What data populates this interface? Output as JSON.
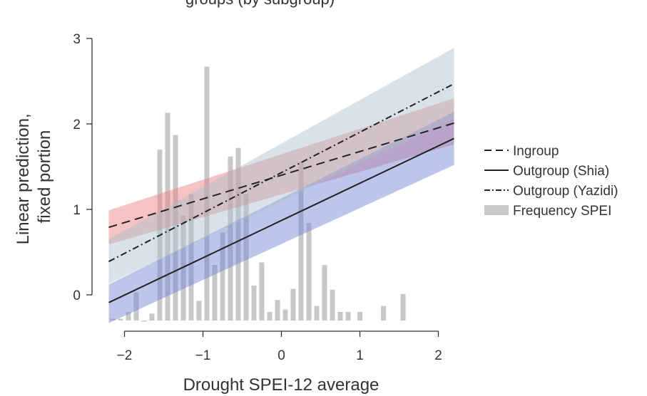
{
  "chart_data": {
    "type": "line",
    "title": "groups (by subgroup)",
    "xlabel": "Drought SPEI-12 average",
    "ylabel_lines": [
      "Linear prediction,",
      "fixed portion"
    ],
    "xlim": [
      -2.25,
      2.25
    ],
    "ylim": [
      -0.45,
      3.05
    ],
    "x_ticks": [
      -2,
      -1,
      0,
      1,
      2
    ],
    "x_tick_labels": [
      "−2",
      "−1",
      "0",
      "1",
      "2"
    ],
    "y_ticks": [
      0,
      1,
      2,
      3
    ],
    "y_tick_labels": [
      "0",
      "1",
      "2",
      "3"
    ],
    "grid": false,
    "legend_position": "right",
    "series": [
      {
        "name": "Ingroup",
        "style": "dashed",
        "color": "#222222",
        "band_color": "#e87a7a",
        "band_opacity": 0.45,
        "x": [
          -2.2,
          2.2
        ],
        "y": [
          0.79,
          2.01
        ],
        "ci_low": [
          0.59,
          1.76
        ],
        "ci_high": [
          0.99,
          2.3
        ]
      },
      {
        "name": "Outgroup (Shia)",
        "style": "solid",
        "color": "#222222",
        "band_color": "#6f7fd0",
        "band_opacity": 0.45,
        "x": [
          -2.2,
          2.2
        ],
        "y": [
          -0.09,
          1.83
        ],
        "ci_low": [
          -0.33,
          1.52
        ],
        "ci_high": [
          0.12,
          2.14
        ]
      },
      {
        "name": "Outgroup (Yazidi)",
        "style": "dashdot",
        "color": "#222222",
        "band_color": "#a9bfcc",
        "band_opacity": 0.45,
        "x": [
          -2.2,
          2.2
        ],
        "y": [
          0.39,
          2.47
        ],
        "ci_low": [
          0.13,
          2.06
        ],
        "ci_high": [
          0.65,
          2.89
        ]
      }
    ],
    "histogram": {
      "name": "Frequency SPEI",
      "color": "#c8c8c8",
      "x": [
        -2.15,
        -2.05,
        -1.95,
        -1.85,
        -1.75,
        -1.65,
        -1.55,
        -1.45,
        -1.35,
        -1.25,
        -1.15,
        -1.05,
        -0.95,
        -0.85,
        -0.75,
        -0.65,
        -0.55,
        -0.45,
        -0.35,
        -0.25,
        -0.15,
        -0.05,
        0.05,
        0.15,
        0.25,
        0.35,
        0.45,
        0.55,
        0.65,
        0.75,
        0.85,
        1.0,
        1.3,
        1.55
      ],
      "y": [
        -0.28,
        -0.28,
        -0.2,
        0.03,
        -0.3,
        -0.22,
        1.7,
        2.13,
        1.87,
        0.93,
        1.18,
        -0.07,
        2.67,
        0.35,
        0.73,
        1.62,
        1.72,
        1.18,
        0.11,
        0.38,
        -0.2,
        -0.06,
        -0.17,
        0.07,
        1.56,
        0.84,
        -0.13,
        0.35,
        0.06,
        -0.2,
        -0.2,
        -0.2,
        -0.13,
        0.01
      ]
    }
  }
}
